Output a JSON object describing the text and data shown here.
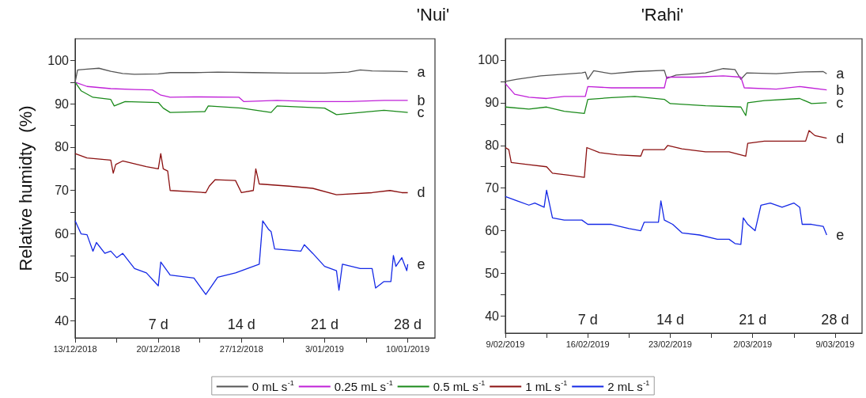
{
  "chart_data": [
    {
      "type": "line",
      "title": "'Nui'",
      "ylabel": "Relative humidty  (%)",
      "legend": "bottom",
      "line_style": "solid",
      "grid": false,
      "xlim": [
        "2018-12-13T00:00",
        "2019-01-12T07:00"
      ],
      "ylim": [
        36,
        105
      ],
      "xticks": [
        {
          "value": "2018-12-13T00:00",
          "label": "13/12/2018"
        },
        {
          "value": "2018-12-16T12:00",
          "label": null
        },
        {
          "value": "2018-12-20T00:00",
          "label": "20/12/2018"
        },
        {
          "value": "2018-12-23T12:00",
          "label": null
        },
        {
          "value": "2018-12-27T00:00",
          "label": "27/12/2018"
        },
        {
          "value": "2018-12-30T12:00",
          "label": null
        },
        {
          "value": "2019-01-03T00:00",
          "label": "3/01/2019"
        },
        {
          "value": "2019-01-06T12:00",
          "label": null
        },
        {
          "value": "2019-01-10T00:00",
          "label": "10/01/2019"
        }
      ],
      "yticks": [
        40,
        {
          "value": 45,
          "label": null
        },
        50,
        {
          "value": 55,
          "label": null
        },
        60,
        {
          "value": 65,
          "label": null
        },
        70,
        {
          "value": 75,
          "label": null
        },
        80,
        {
          "value": 85,
          "label": null
        },
        90,
        {
          "value": 95,
          "label": null
        },
        100
      ],
      "annotations": [
        "a",
        "b",
        "c",
        "d",
        "e",
        "7 d",
        "14 d",
        "21 d",
        "28 d"
      ],
      "series": [
        {
          "name": "0 mL s$^{-1}$",
          "color": "#555555",
          "x": [
            "2018-12-13T00:00",
            "2018-12-13T05:00",
            "2018-12-14T00:00",
            "2018-12-15T00:00",
            "2018-12-16T00:00",
            "2018-12-17T00:00",
            "2018-12-18T00:00",
            "2018-12-20T00:00",
            "2018-12-21T00:00",
            "2018-12-23T00:00",
            "2018-12-25T00:00",
            "2018-12-28T00:00",
            "2018-12-31T00:00",
            "2019-01-03T00:00",
            "2019-01-05T00:00",
            "2019-01-06T00:00",
            "2019-01-07T00:00",
            "2019-01-09T00:00",
            "2019-01-10T00:00"
          ],
          "values": [
            95,
            97.8,
            98,
            98.2,
            97.5,
            97,
            96.8,
            96.9,
            97.2,
            97.2,
            97.3,
            97.2,
            97.1,
            97.1,
            97.3,
            97.8,
            97.6,
            97.5,
            97.4
          ]
        },
        {
          "name": "0.25 mL s$^{-1}$",
          "color": "#c020d8",
          "x": [
            "2018-12-13T00:00",
            "2018-12-14T00:00",
            "2018-12-16T00:00",
            "2018-12-18T00:00",
            "2018-12-19T12:00",
            "2018-12-20T05:00",
            "2018-12-21T00:00",
            "2018-12-23T00:00",
            "2018-12-26T19:00",
            "2018-12-27T05:00",
            "2018-12-30T00:00",
            "2019-01-02T00:00",
            "2019-01-05T00:00",
            "2019-01-08T00:00",
            "2019-01-10T00:00"
          ],
          "values": [
            95,
            94,
            93.5,
            93.3,
            93.2,
            92,
            91.5,
            91.6,
            91.5,
            90.5,
            90.8,
            90.5,
            90.5,
            90.8,
            90.8
          ]
        },
        {
          "name": "0.5 mL s$^{-1}$",
          "color": "#1a8a1a",
          "x": [
            "2018-12-13T00:00",
            "2018-12-13T12:00",
            "2018-12-14T12:00",
            "2018-12-16T00:00",
            "2018-12-16T07:00",
            "2018-12-17T05:00",
            "2018-12-20T00:00",
            "2018-12-20T10:00",
            "2018-12-21T00:00",
            "2018-12-23T22:00",
            "2018-12-24T05:00",
            "2018-12-27T00:00",
            "2018-12-29T12:00",
            "2018-12-30T00:00",
            "2019-01-03T00:00",
            "2019-01-04T00:00",
            "2019-01-06T00:00",
            "2019-01-08T00:00",
            "2019-01-10T00:00"
          ],
          "values": [
            95,
            93,
            91.5,
            91,
            89.5,
            90.5,
            90.3,
            89,
            88,
            88.2,
            89.5,
            89,
            88,
            89.5,
            89,
            87.5,
            88,
            88.5,
            88
          ]
        },
        {
          "name": "1 mL s$^{-1}$",
          "color": "#8b1010",
          "x": [
            "2018-12-13T00:00",
            "2018-12-14T00:00",
            "2018-12-16T00:00",
            "2018-12-16T05:00",
            "2018-12-16T10:00",
            "2018-12-17T00:00",
            "2018-12-19T00:00",
            "2018-12-20T00:00",
            "2018-12-20T05:00",
            "2018-12-20T10:00",
            "2018-12-20T19:00",
            "2018-12-21T00:00",
            "2018-12-24T00:00",
            "2018-12-24T07:00",
            "2018-12-24T19:00",
            "2018-12-26T12:00",
            "2018-12-27T00:00",
            "2018-12-28T00:00",
            "2018-12-28T05:00",
            "2018-12-28T12:00",
            "2018-12-31T00:00",
            "2019-01-02T00:00",
            "2019-01-04T00:00",
            "2019-01-07T00:00",
            "2019-01-08T12:00",
            "2019-01-09T12:00",
            "2019-01-10T00:00"
          ],
          "values": [
            78.5,
            77.5,
            77,
            74,
            76,
            76.8,
            75.5,
            75,
            78.5,
            75,
            74.5,
            70,
            69.5,
            71,
            72.5,
            72.3,
            69.5,
            70,
            75,
            71.5,
            71,
            70.5,
            69,
            69.5,
            70,
            69.5,
            69.5
          ]
        },
        {
          "name": "2 mL s$^{-1}$",
          "color": "#1428e6",
          "x": [
            "2018-12-13T00:00",
            "2018-12-13T12:00",
            "2018-12-14T00:00",
            "2018-12-14T12:00",
            "2018-12-14T19:00",
            "2018-12-15T12:00",
            "2018-12-16T00:00",
            "2018-12-16T12:00",
            "2018-12-17T00:00",
            "2018-12-18T00:00",
            "2018-12-19T00:00",
            "2018-12-20T00:00",
            "2018-12-20T05:00",
            "2018-12-21T00:00",
            "2018-12-23T00:00",
            "2018-12-24T00:00",
            "2018-12-25T00:00",
            "2018-12-26T12:00",
            "2018-12-28T00:00",
            "2018-12-28T12:00",
            "2018-12-28T19:00",
            "2018-12-29T07:00",
            "2018-12-29T12:00",
            "2018-12-29T19:00",
            "2019-01-01T00:00",
            "2019-01-01T07:00",
            "2019-01-02T00:00",
            "2019-01-03T00:00",
            "2019-01-04T00:00",
            "2019-01-04T05:00",
            "2019-01-04T12:00",
            "2019-01-06T00:00",
            "2019-01-07T00:00",
            "2019-01-07T07:00",
            "2019-01-08T00:00",
            "2019-01-08T14:00",
            "2019-01-08T19:00",
            "2019-01-09T00:00",
            "2019-01-09T12:00",
            "2019-01-09T22:00",
            "2019-01-10T00:00"
          ],
          "values": [
            63,
            60,
            59.8,
            56,
            58,
            55.5,
            56,
            54.5,
            55.5,
            52,
            51,
            48,
            53.5,
            50.5,
            49.8,
            46,
            50,
            51,
            52.5,
            53,
            63,
            61,
            60.5,
            56.5,
            56,
            57.5,
            55.5,
            52.5,
            51.5,
            47,
            53,
            52,
            52,
            47.5,
            49,
            49,
            55,
            52.5,
            54.5,
            51.5,
            53
          ]
        }
      ]
    },
    {
      "type": "line",
      "title": "'Rahi'",
      "line_style": "solid",
      "grid": false,
      "xlim": [
        "2019-02-09T00:00",
        "2019-03-11T07:00"
      ],
      "ylim": [
        36,
        105
      ],
      "xticks": [
        {
          "value": "2019-02-09T00:00",
          "label": "9/02/2019"
        },
        {
          "value": "2019-02-12T12:00",
          "label": null
        },
        {
          "value": "2019-02-16T00:00",
          "label": "16/02/2019"
        },
        {
          "value": "2019-02-19T12:00",
          "label": null
        },
        {
          "value": "2019-02-23T00:00",
          "label": "23/02/2019"
        },
        {
          "value": "2019-02-26T12:00",
          "label": null
        },
        {
          "value": "2019-03-02T00:00",
          "label": "2/03/2019"
        },
        {
          "value": "2019-03-05T12:00",
          "label": null
        },
        {
          "value": "2019-03-09T00:00",
          "label": "9/03/2019"
        }
      ],
      "yticks": [
        40,
        {
          "value": 45,
          "label": null
        },
        50,
        {
          "value": 55,
          "label": null
        },
        60,
        {
          "value": 65,
          "label": null
        },
        70,
        {
          "value": 75,
          "label": null
        },
        80,
        {
          "value": 85,
          "label": null
        },
        90,
        {
          "value": 95,
          "label": null
        },
        100
      ],
      "annotations": [
        "a",
        "b",
        "c",
        "d",
        "e",
        "7 d",
        "14 d",
        "21 d",
        "28 d"
      ],
      "series": [
        {
          "color": "#555555",
          "x": [
            "2019-02-09T00:00",
            "2019-02-10T00:00",
            "2019-02-12T00:00",
            "2019-02-15T12:00",
            "2019-02-15T19:00",
            "2019-02-16T00:00",
            "2019-02-16T12:00",
            "2019-02-18T00:00",
            "2019-02-20T00:00",
            "2019-02-22T12:00",
            "2019-02-22T17:00",
            "2019-02-23T12:00",
            "2019-02-26T00:00",
            "2019-02-27T12:00",
            "2019-02-28T12:00",
            "2019-03-01T00:00",
            "2019-03-01T12:00",
            "2019-03-04T00:00",
            "2019-03-06T00:00",
            "2019-03-08T00:00",
            "2019-03-08T07:00"
          ],
          "values": [
            95,
            95.5,
            96.3,
            97,
            97.2,
            95.5,
            97.5,
            96.8,
            97.3,
            97.6,
            95.7,
            96.5,
            97,
            98,
            97.8,
            95.5,
            97,
            96.8,
            97.2,
            97.3,
            96.8
          ]
        },
        {
          "color": "#c020d8",
          "x": [
            "2019-02-09T00:00",
            "2019-02-09T19:00",
            "2019-02-11T00:00",
            "2019-02-12T12:00",
            "2019-02-14T00:00",
            "2019-02-15T19:00",
            "2019-02-16T00:00",
            "2019-02-18T00:00",
            "2019-02-22T12:00",
            "2019-02-22T17:00",
            "2019-02-25T00:00",
            "2019-02-27T12:00",
            "2019-03-01T00:00",
            "2019-03-01T07:00",
            "2019-03-04T00:00",
            "2019-03-06T00:00",
            "2019-03-08T07:00"
          ],
          "values": [
            94.5,
            92,
            91.3,
            91,
            91.5,
            91.5,
            93.8,
            93.5,
            93.5,
            96,
            96,
            96.3,
            96,
            93.5,
            93.2,
            93.8,
            93
          ]
        },
        {
          "color": "#1a8a1a",
          "x": [
            "2019-02-09T00:00",
            "2019-02-11T00:00",
            "2019-02-12T12:00",
            "2019-02-14T00:00",
            "2019-02-15T17:00",
            "2019-02-16T00:00",
            "2019-02-18T00:00",
            "2019-02-20T00:00",
            "2019-02-22T12:00",
            "2019-02-23T00:00",
            "2019-02-26T00:00",
            "2019-03-01T00:00",
            "2019-03-01T10:00",
            "2019-03-01T14:00",
            "2019-03-03T00:00",
            "2019-03-06T00:00",
            "2019-03-07T00:00",
            "2019-03-08T07:00"
          ],
          "values": [
            89,
            88.5,
            89,
            88,
            87.5,
            90.8,
            91.2,
            91.5,
            90.8,
            89.8,
            89.3,
            89,
            87,
            90,
            90.5,
            91,
            89.8,
            90
          ]
        },
        {
          "color": "#8b1010",
          "x": [
            "2019-02-09T00:00",
            "2019-02-09T07:00",
            "2019-02-09T12:00",
            "2019-02-11T00:00",
            "2019-02-12T12:00",
            "2019-02-13T00:00",
            "2019-02-14T12:00",
            "2019-02-15T17:00",
            "2019-02-15T22:00",
            "2019-02-17T00:00",
            "2019-02-18T12:00",
            "2019-02-20T12:00",
            "2019-02-20T17:00",
            "2019-02-22T12:00",
            "2019-02-22T19:00",
            "2019-02-24T00:00",
            "2019-02-26T00:00",
            "2019-02-28T00:00",
            "2019-03-01T10:00",
            "2019-03-01T14:00",
            "2019-03-03T00:00",
            "2019-03-05T00:00",
            "2019-03-06T12:00",
            "2019-03-06T19:00",
            "2019-03-07T07:00",
            "2019-03-08T07:00"
          ],
          "values": [
            79.5,
            79,
            76,
            75.5,
            75,
            73.5,
            73,
            72.5,
            79.5,
            78.3,
            77.8,
            77.5,
            79,
            79,
            80,
            79.2,
            78.5,
            78.5,
            77.5,
            80.5,
            81,
            81,
            81,
            83.5,
            82.3,
            81.7
          ]
        },
        {
          "color": "#1428e6",
          "x": [
            "2019-02-09T00:00",
            "2019-02-10T00:00",
            "2019-02-11T00:00",
            "2019-02-11T12:00",
            "2019-02-12T07:00",
            "2019-02-12T12:00",
            "2019-02-13T00:00",
            "2019-02-14T00:00",
            "2019-02-15T12:00",
            "2019-02-16T00:00",
            "2019-02-18T00:00",
            "2019-02-19T12:00",
            "2019-02-20T12:00",
            "2019-02-20T19:00",
            "2019-02-22T00:00",
            "2019-02-22T05:00",
            "2019-02-22T12:00",
            "2019-02-23T05:00",
            "2019-02-24T00:00",
            "2019-02-25T12:00",
            "2019-02-27T00:00",
            "2019-02-28T00:00",
            "2019-02-28T12:00",
            "2019-03-01T00:00",
            "2019-03-01T05:00",
            "2019-03-01T14:00",
            "2019-03-02T05:00",
            "2019-03-02T17:00",
            "2019-03-03T12:00",
            "2019-03-04T12:00",
            "2019-03-05T12:00",
            "2019-03-06T00:00",
            "2019-03-06T05:00",
            "2019-03-07T00:00",
            "2019-03-08T00:00",
            "2019-03-08T07:00"
          ],
          "values": [
            68,
            67,
            66,
            66.5,
            65.5,
            69.5,
            63,
            62.5,
            62.5,
            61.5,
            61.5,
            60.5,
            60,
            62,
            62,
            67,
            62.5,
            61.5,
            59.5,
            59,
            58,
            58,
            57,
            56.8,
            63,
            61.5,
            60,
            66,
            66.5,
            65.5,
            66.5,
            65.5,
            61.5,
            61.5,
            61,
            59
          ]
        }
      ]
    }
  ]
}
